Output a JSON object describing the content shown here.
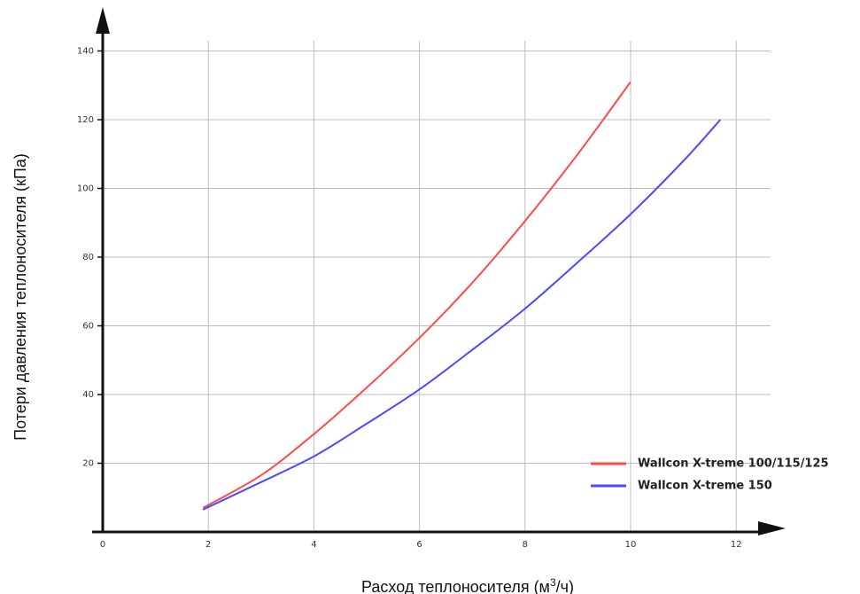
{
  "chart_data": {
    "type": "line",
    "xlabel": "Расход теплоносителя (м",
    "xlabel_sup": "3",
    "xlabel_end": "/ч)",
    "ylabel": "Потери давления теплоносителя (кПа)",
    "xlim": [
      0,
      13
    ],
    "ylim": [
      0,
      145
    ],
    "x_ticks": [
      0,
      2,
      4,
      6,
      8,
      10,
      12
    ],
    "y_ticks": [
      20,
      40,
      60,
      80,
      100,
      120,
      140
    ],
    "grid": true,
    "legend_position": "bottom-right",
    "series": [
      {
        "name": "Wallcon X-treme 100/115/125",
        "color": "#ff4a4a",
        "points": [
          [
            1.9,
            7
          ],
          [
            3,
            16.5
          ],
          [
            4,
            28.5
          ],
          [
            5,
            42
          ],
          [
            6,
            56.5
          ],
          [
            7,
            72.5
          ],
          [
            8,
            90.5
          ],
          [
            9,
            110
          ],
          [
            10,
            131
          ]
        ]
      },
      {
        "name": "Wallcon X-treme 150",
        "color": "#4a4aff",
        "points": [
          [
            1.9,
            6.5
          ],
          [
            3,
            14.5
          ],
          [
            4,
            22
          ],
          [
            5,
            31.5
          ],
          [
            6,
            41.5
          ],
          [
            7,
            53
          ],
          [
            8,
            65
          ],
          [
            9,
            78.5
          ],
          [
            10,
            92.5
          ],
          [
            11,
            108
          ],
          [
            11.7,
            120
          ]
        ]
      }
    ]
  }
}
